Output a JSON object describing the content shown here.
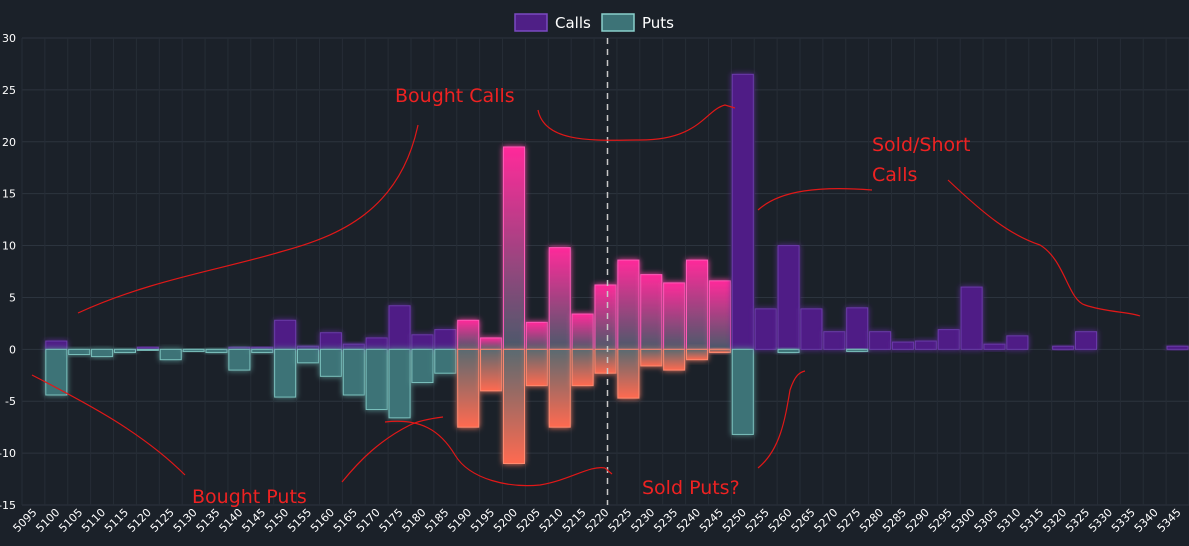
{
  "chart_data": {
    "type": "bar",
    "categories": [
      "5095",
      "5100",
      "5105",
      "5110",
      "5115",
      "5120",
      "5125",
      "5130",
      "5135",
      "5140",
      "5145",
      "5150",
      "5155",
      "5160",
      "5165",
      "5170",
      "5175",
      "5180",
      "5185",
      "5190",
      "5195",
      "5200",
      "5205",
      "5210",
      "5215",
      "5220",
      "5225",
      "5230",
      "5235",
      "5240",
      "5245",
      "5250",
      "5255",
      "5260",
      "5265",
      "5270",
      "5275",
      "5280",
      "5285",
      "5290",
      "5295",
      "5300",
      "5305",
      "5310",
      "5315",
      "5320",
      "5325",
      "5330",
      "5335",
      "5340",
      "5345"
    ],
    "series": [
      {
        "name": "Calls",
        "color": "#4f1f86",
        "values": [
          0,
          0.8,
          0,
          0,
          0,
          0.2,
          0,
          0,
          0,
          0.2,
          0.2,
          2.8,
          0.3,
          1.6,
          0.5,
          1.1,
          4.2,
          1.4,
          1.9,
          2.8,
          1.1,
          19.5,
          2.6,
          9.8,
          3.4,
          6.2,
          8.6,
          7.2,
          6.4,
          8.6,
          6.6,
          26.5,
          3.9,
          10.0,
          3.9,
          1.7,
          4.0,
          1.7,
          0.7,
          0.8,
          1.9,
          6.0,
          0.5,
          1.3,
          0,
          0.3,
          1.7,
          0,
          0,
          0,
          0.3
        ]
      },
      {
        "name": "Puts",
        "color": "#3d7377",
        "values": [
          0,
          -4.4,
          -0.5,
          -0.7,
          -0.3,
          -0.1,
          -1.0,
          -0.2,
          -0.3,
          -2.0,
          -0.3,
          -4.6,
          -1.3,
          -2.6,
          -4.4,
          -5.8,
          -6.6,
          -3.2,
          -2.3,
          -7.5,
          -4.0,
          -11.0,
          -3.5,
          -7.5,
          -3.5,
          -2.3,
          -4.7,
          -1.6,
          -2.0,
          -1.0,
          -0.3,
          -8.2,
          0,
          -0.3,
          0,
          0,
          -0.2,
          0,
          0,
          0,
          0,
          0,
          0,
          0,
          0,
          0,
          0,
          0,
          0,
          0,
          0
        ]
      }
    ],
    "highlight_categories": [
      "5190",
      "5195",
      "5200",
      "5205",
      "5210",
      "5215",
      "5220",
      "5225",
      "5230",
      "5235",
      "5240",
      "5245"
    ],
    "highlight_colors": {
      "calls_top": "#ff2a9a",
      "puts_bottom": "#ff6a50"
    },
    "ylim": [
      -15,
      30
    ],
    "yticks": [
      -15,
      -10,
      -5,
      0,
      5,
      10,
      15,
      20,
      25,
      30
    ],
    "grid": true,
    "legend": "top-center",
    "reference_line_at": "5220",
    "annotations": [
      "Bought Calls",
      "Sold/Short",
      "Calls",
      "Bought Puts",
      "Sold Puts?"
    ],
    "annotation_color": "#ee2222"
  }
}
